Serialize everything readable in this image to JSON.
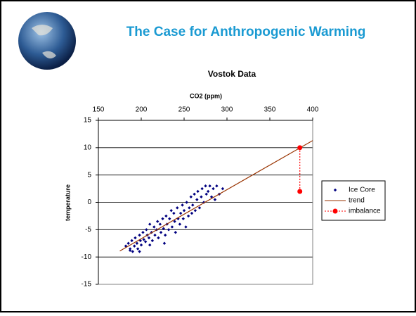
{
  "slide": {
    "title": "The Case for Anthropogenic Warming"
  },
  "chart_data": {
    "type": "scatter",
    "title": "Vostok Data",
    "x_label": "CO2 (ppm)",
    "y_label": "temperature",
    "xlim": [
      150,
      400
    ],
    "xticks": [
      150,
      200,
      250,
      300,
      350,
      400
    ],
    "x_axis_position": "top",
    "ylim": [
      -15,
      15
    ],
    "yticks": [
      -15,
      -10,
      -5,
      0,
      5,
      10,
      15
    ],
    "grid": true,
    "legend": "right",
    "series": [
      {
        "name": "Ice Core",
        "color": "#000080",
        "style": "markers",
        "x": [
          182,
          185,
          187,
          189,
          190,
          192,
          193,
          195,
          196,
          198,
          199,
          200,
          202,
          203,
          205,
          206,
          207,
          209,
          210,
          212,
          213,
          215,
          216,
          218,
          219,
          220,
          222,
          223,
          225,
          226,
          228,
          229,
          230,
          232,
          233,
          235,
          236,
          238,
          239,
          240,
          242,
          243,
          245,
          246,
          248,
          249,
          250,
          252,
          253,
          255,
          256,
          258,
          259,
          260,
          262,
          263,
          265,
          266,
          268,
          270,
          271,
          273,
          275,
          276,
          278,
          280,
          282,
          284,
          286,
          288,
          291,
          295,
          198,
          187,
          210,
          227
        ],
        "values": [
          -8,
          -7.5,
          -8.5,
          -7,
          -9,
          -8,
          -6.5,
          -7.5,
          -8.5,
          -6,
          -7,
          -7.8,
          -5.5,
          -6.8,
          -7.2,
          -5,
          -6,
          -6.5,
          -4,
          -5.5,
          -7,
          -4.5,
          -6,
          -5,
          -3.5,
          -6.5,
          -4,
          -5.5,
          -3,
          -4.8,
          -6,
          -2.5,
          -4,
          -5,
          -3,
          -1.5,
          -4.5,
          -2,
          -3.5,
          -5.5,
          -1,
          -3,
          -4,
          -2,
          -0.5,
          -3,
          -1.5,
          -4.5,
          0,
          -2.5,
          -1,
          1,
          -2,
          -0.5,
          1.5,
          -1.5,
          0.5,
          2,
          -1,
          1,
          2.5,
          0,
          3,
          1.5,
          2,
          3,
          1,
          2.5,
          0.5,
          3,
          1.5,
          2.5,
          -9,
          -8.8,
          -7.8,
          -7.5
        ]
      },
      {
        "name": "trend",
        "color": "#993300",
        "style": "line",
        "x": [
          175,
          400
        ],
        "values": [
          -8.9,
          11.3
        ]
      },
      {
        "name": "imbalance",
        "color": "#ff0000",
        "style": "dotted-markers",
        "x": [
          385,
          385
        ],
        "values": [
          10,
          2
        ]
      }
    ]
  }
}
